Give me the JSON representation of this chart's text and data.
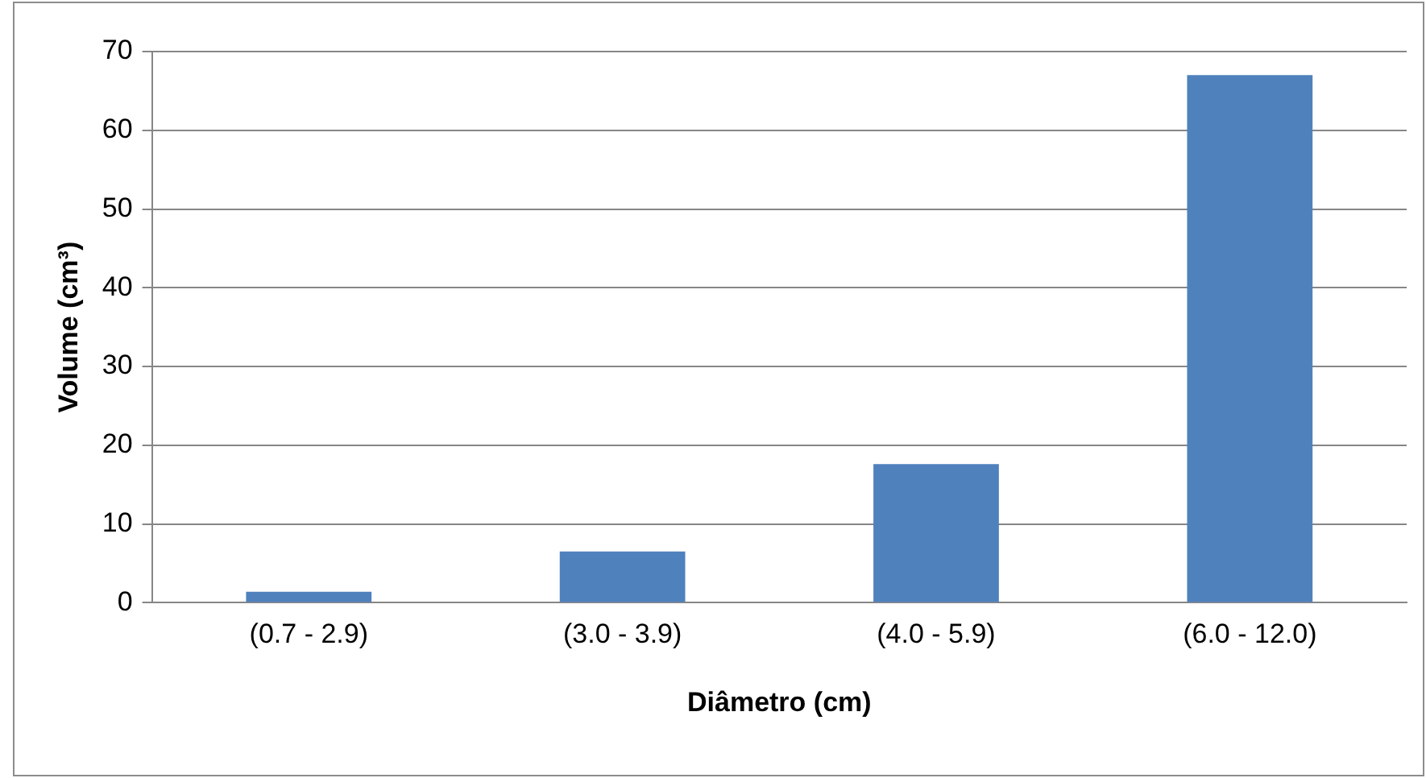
{
  "chart_data": {
    "type": "bar",
    "xlabel": "Diâmetro (cm)",
    "ylabel": "Volume (cm³)",
    "categories": [
      "(0.7 - 2.9)",
      "(3.0 - 3.9)",
      "(4.0 - 5.9)",
      "(6.0 - 12.0)"
    ],
    "values": [
      1.4,
      6.5,
      17.6,
      67.0
    ],
    "color": "#4f81bd",
    "ylim": [
      0,
      70
    ],
    "yticks": [
      0,
      10,
      20,
      30,
      40,
      50,
      60,
      70
    ],
    "grid": "y",
    "legend": false
  }
}
